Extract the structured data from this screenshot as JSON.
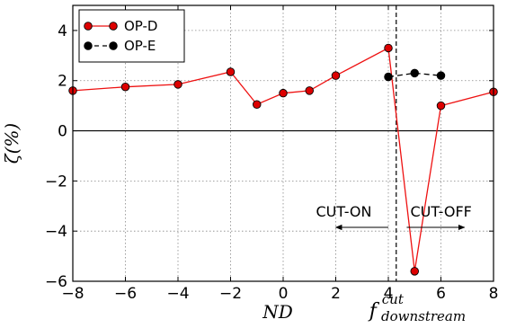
{
  "chart_data": {
    "type": "line",
    "xlabel": "ND",
    "ylabel": "ζ(%)",
    "xlim": [
      -8,
      8
    ],
    "ylim": [
      -6,
      5
    ],
    "x_ticks": [
      -8,
      -6,
      -4,
      -2,
      0,
      2,
      4,
      6,
      8
    ],
    "y_ticks": [
      -6,
      -4,
      -2,
      0,
      2,
      4
    ],
    "x_tick_labels": [
      "−8",
      "−6",
      "−4",
      "−2",
      "0",
      "2",
      "4",
      "6",
      "8"
    ],
    "y_tick_labels": [
      "−6",
      "−4",
      "−2",
      "0",
      "2",
      "4"
    ],
    "grid": true,
    "legend": "top-left",
    "series": [
      {
        "name": "OP-D",
        "color": "#ee1111",
        "marker_color": "#dd0000",
        "line_style": "solid",
        "points": [
          {
            "x": -8,
            "y": 1.6
          },
          {
            "x": -6,
            "y": 1.75
          },
          {
            "x": -4,
            "y": 1.85
          },
          {
            "x": -2,
            "y": 2.35
          },
          {
            "x": -1,
            "y": 1.05
          },
          {
            "x": 0,
            "y": 1.5
          },
          {
            "x": 1,
            "y": 1.6
          },
          {
            "x": 2,
            "y": 2.2
          },
          {
            "x": 4,
            "y": 3.3
          },
          {
            "x": 5,
            "y": -5.6
          },
          {
            "x": 6,
            "y": 1.0
          },
          {
            "x": 8,
            "y": 1.55
          }
        ]
      },
      {
        "name": "OP-E",
        "color": "#000000",
        "marker_color": "#000000",
        "line_style": "dashed",
        "points": [
          {
            "x": 4,
            "y": 2.15
          },
          {
            "x": 5,
            "y": 2.3
          },
          {
            "x": 6,
            "y": 2.2
          }
        ]
      }
    ],
    "cutoff": {
      "x": 4.3,
      "label_main": "f",
      "label_sup": "cut",
      "label_sub": "downstream"
    },
    "annotations": [
      {
        "text": "CUT-ON",
        "direction": "left",
        "arrow_from": 4.0,
        "arrow_to": 2.0,
        "y": -3.85
      },
      {
        "text": "CUT-OFF",
        "direction": "right",
        "arrow_from": 4.7,
        "arrow_to": 6.9,
        "y": -3.85
      }
    ]
  }
}
